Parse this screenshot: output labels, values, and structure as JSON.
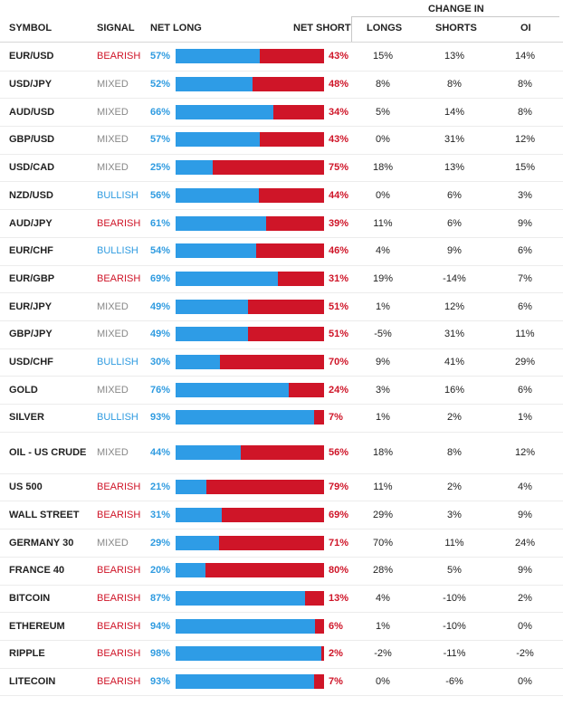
{
  "headers": {
    "symbol": "SYMBOL",
    "signal": "SIGNAL",
    "net_long": "NET LONG",
    "net_short": "NET SHORT",
    "change_in": "CHANGE IN",
    "longs": "LONGS",
    "shorts": "SHORTS",
    "oi": "OI"
  },
  "colors": {
    "long_blue": "#2e9ce6",
    "short_red": "#cf1528",
    "bearish": "#cf1528",
    "bullish": "#2f9be0",
    "mixed": "#888888"
  },
  "rows": [
    {
      "symbol": "EUR/USD",
      "signal": "BEARISH",
      "net_long_pct": 57,
      "net_long": "57%",
      "net_short": "43%",
      "longs": "15%",
      "shorts": "13%",
      "oi": "14%"
    },
    {
      "symbol": "USD/JPY",
      "signal": "MIXED",
      "net_long_pct": 52,
      "net_long": "52%",
      "net_short": "48%",
      "longs": "8%",
      "shorts": "8%",
      "oi": "8%"
    },
    {
      "symbol": "AUD/USD",
      "signal": "MIXED",
      "net_long_pct": 66,
      "net_long": "66%",
      "net_short": "34%",
      "longs": "5%",
      "shorts": "14%",
      "oi": "8%"
    },
    {
      "symbol": "GBP/USD",
      "signal": "MIXED",
      "net_long_pct": 57,
      "net_long": "57%",
      "net_short": "43%",
      "longs": "0%",
      "shorts": "31%",
      "oi": "12%"
    },
    {
      "symbol": "USD/CAD",
      "signal": "MIXED",
      "net_long_pct": 25,
      "net_long": "25%",
      "net_short": "75%",
      "longs": "18%",
      "shorts": "13%",
      "oi": "15%"
    },
    {
      "symbol": "NZD/USD",
      "signal": "BULLISH",
      "net_long_pct": 56,
      "net_long": "56%",
      "net_short": "44%",
      "longs": "0%",
      "shorts": "6%",
      "oi": "3%"
    },
    {
      "symbol": "AUD/JPY",
      "signal": "BEARISH",
      "net_long_pct": 61,
      "net_long": "61%",
      "net_short": "39%",
      "longs": "11%",
      "shorts": "6%",
      "oi": "9%"
    },
    {
      "symbol": "EUR/CHF",
      "signal": "BULLISH",
      "net_long_pct": 54,
      "net_long": "54%",
      "net_short": "46%",
      "longs": "4%",
      "shorts": "9%",
      "oi": "6%"
    },
    {
      "symbol": "EUR/GBP",
      "signal": "BEARISH",
      "net_long_pct": 69,
      "net_long": "69%",
      "net_short": "31%",
      "longs": "19%",
      "shorts": "-14%",
      "oi": "7%"
    },
    {
      "symbol": "EUR/JPY",
      "signal": "MIXED",
      "net_long_pct": 49,
      "net_long": "49%",
      "net_short": "51%",
      "longs": "1%",
      "shorts": "12%",
      "oi": "6%"
    },
    {
      "symbol": "GBP/JPY",
      "signal": "MIXED",
      "net_long_pct": 49,
      "net_long": "49%",
      "net_short": "51%",
      "longs": "-5%",
      "shorts": "31%",
      "oi": "11%"
    },
    {
      "symbol": "USD/CHF",
      "signal": "BULLISH",
      "net_long_pct": 30,
      "net_long": "30%",
      "net_short": "70%",
      "longs": "9%",
      "shorts": "41%",
      "oi": "29%"
    },
    {
      "symbol": "GOLD",
      "signal": "MIXED",
      "net_long_pct": 76,
      "net_long": "76%",
      "net_short": "24%",
      "longs": "3%",
      "shorts": "16%",
      "oi": "6%"
    },
    {
      "symbol": "SILVER",
      "signal": "BULLISH",
      "net_long_pct": 93,
      "net_long": "93%",
      "net_short": "7%",
      "longs": "1%",
      "shorts": "2%",
      "oi": "1%"
    },
    {
      "symbol": "OIL - US CRUDE",
      "signal": "MIXED",
      "net_long_pct": 44,
      "net_long": "44%",
      "net_short": "56%",
      "longs": "18%",
      "shorts": "8%",
      "oi": "12%"
    },
    {
      "symbol": "US 500",
      "signal": "BEARISH",
      "net_long_pct": 21,
      "net_long": "21%",
      "net_short": "79%",
      "longs": "11%",
      "shorts": "2%",
      "oi": "4%"
    },
    {
      "symbol": "WALL STREET",
      "signal": "BEARISH",
      "net_long_pct": 31,
      "net_long": "31%",
      "net_short": "69%",
      "longs": "29%",
      "shorts": "3%",
      "oi": "9%"
    },
    {
      "symbol": "GERMANY 30",
      "signal": "MIXED",
      "net_long_pct": 29,
      "net_long": "29%",
      "net_short": "71%",
      "longs": "70%",
      "shorts": "11%",
      "oi": "24%"
    },
    {
      "symbol": "FRANCE 40",
      "signal": "BEARISH",
      "net_long_pct": 20,
      "net_long": "20%",
      "net_short": "80%",
      "longs": "28%",
      "shorts": "5%",
      "oi": "9%"
    },
    {
      "symbol": "BITCOIN",
      "signal": "BEARISH",
      "net_long_pct": 87,
      "net_long": "87%",
      "net_short": "13%",
      "longs": "4%",
      "shorts": "-10%",
      "oi": "2%"
    },
    {
      "symbol": "ETHEREUM",
      "signal": "BEARISH",
      "net_long_pct": 94,
      "net_long": "94%",
      "net_short": "6%",
      "longs": "1%",
      "shorts": "-10%",
      "oi": "0%"
    },
    {
      "symbol": "RIPPLE",
      "signal": "BEARISH",
      "net_long_pct": 98,
      "net_long": "98%",
      "net_short": "2%",
      "longs": "-2%",
      "shorts": "-11%",
      "oi": "-2%"
    },
    {
      "symbol": "LITECOIN",
      "signal": "BEARISH",
      "net_long_pct": 93,
      "net_long": "93%",
      "net_short": "7%",
      "longs": "0%",
      "shorts": "-6%",
      "oi": "0%"
    }
  ]
}
